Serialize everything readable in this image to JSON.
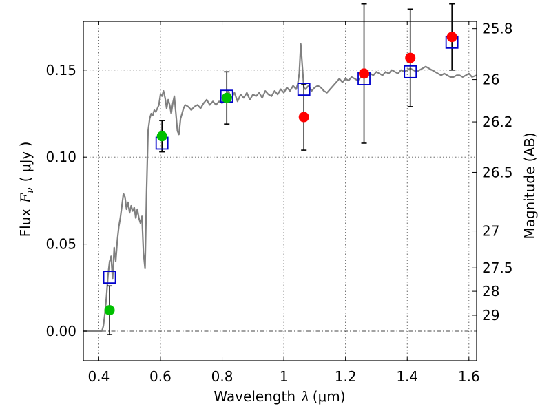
{
  "chart_data": {
    "type": "scatter",
    "xlabel": "Wavelength",
    "xlabel_symbol": "λ",
    "xlabel_unit": "(μm)",
    "ylabel": "Flux",
    "ylabel_symbol": "F",
    "ylabel_sub": "ν",
    "ylabel_unit": "( μJy )",
    "ylabel_right": "Magnitude (AB)",
    "xlim": [
      0.35,
      1.625
    ],
    "ylim": [
      -0.017,
      0.178
    ],
    "grid": true,
    "x_ticks": [
      {
        "value": 0.4,
        "label": "0.4"
      },
      {
        "value": 0.6,
        "label": "0.6"
      },
      {
        "value": 0.8,
        "label": "0.8"
      },
      {
        "value": 1.0,
        "label": "1"
      },
      {
        "value": 1.2,
        "label": "1.2"
      },
      {
        "value": 1.4,
        "label": "1.4"
      },
      {
        "value": 1.6,
        "label": "1.6"
      }
    ],
    "y_ticks": [
      {
        "value": 0.0,
        "label": "0.00"
      },
      {
        "value": 0.05,
        "label": "0.05"
      },
      {
        "value": 0.1,
        "label": "0.10"
      },
      {
        "value": 0.15,
        "label": "0.15"
      }
    ],
    "magnitude_ticks": [
      {
        "value": 25.8,
        "label": "25.8"
      },
      {
        "value": 26.0,
        "label": "26"
      },
      {
        "value": 26.2,
        "label": "26.2"
      },
      {
        "value": 26.5,
        "label": "26.5"
      },
      {
        "value": 27.0,
        "label": "27"
      },
      {
        "value": 27.5,
        "label": "27.5"
      },
      {
        "value": 28.0,
        "label": "28"
      },
      {
        "value": 29.0,
        "label": "29"
      }
    ],
    "zero_line": 0.0,
    "colors": {
      "spectrum": "#808080",
      "optical": "#00c000",
      "nir": "#ff0000",
      "model": "#0000cc",
      "errorbar": "#000000"
    },
    "spectrum": [
      [
        0.35,
        0.0
      ],
      [
        0.41,
        0.0
      ],
      [
        0.415,
        0.003
      ],
      [
        0.42,
        0.01
      ],
      [
        0.425,
        0.02
      ],
      [
        0.43,
        0.032
      ],
      [
        0.435,
        0.04
      ],
      [
        0.44,
        0.043
      ],
      [
        0.445,
        0.03
      ],
      [
        0.45,
        0.048
      ],
      [
        0.455,
        0.04
      ],
      [
        0.46,
        0.052
      ],
      [
        0.465,
        0.06
      ],
      [
        0.47,
        0.065
      ],
      [
        0.475,
        0.072
      ],
      [
        0.48,
        0.079
      ],
      [
        0.485,
        0.077
      ],
      [
        0.49,
        0.07
      ],
      [
        0.495,
        0.074
      ],
      [
        0.5,
        0.068
      ],
      [
        0.505,
        0.072
      ],
      [
        0.51,
        0.069
      ],
      [
        0.515,
        0.071
      ],
      [
        0.52,
        0.065
      ],
      [
        0.525,
        0.07
      ],
      [
        0.53,
        0.065
      ],
      [
        0.535,
        0.062
      ],
      [
        0.54,
        0.066
      ],
      [
        0.545,
        0.045
      ],
      [
        0.55,
        0.036
      ],
      [
        0.555,
        0.08
      ],
      [
        0.56,
        0.115
      ],
      [
        0.565,
        0.122
      ],
      [
        0.57,
        0.125
      ],
      [
        0.575,
        0.124
      ],
      [
        0.58,
        0.127
      ],
      [
        0.585,
        0.126
      ],
      [
        0.59,
        0.128
      ],
      [
        0.595,
        0.13
      ],
      [
        0.6,
        0.136
      ],
      [
        0.605,
        0.135
      ],
      [
        0.61,
        0.138
      ],
      [
        0.615,
        0.134
      ],
      [
        0.62,
        0.128
      ],
      [
        0.625,
        0.133
      ],
      [
        0.63,
        0.13
      ],
      [
        0.635,
        0.125
      ],
      [
        0.64,
        0.131
      ],
      [
        0.645,
        0.135
      ],
      [
        0.65,
        0.125
      ],
      [
        0.655,
        0.115
      ],
      [
        0.66,
        0.113
      ],
      [
        0.665,
        0.122
      ],
      [
        0.67,
        0.125
      ],
      [
        0.675,
        0.128
      ],
      [
        0.68,
        0.13
      ],
      [
        0.69,
        0.129
      ],
      [
        0.7,
        0.127
      ],
      [
        0.71,
        0.129
      ],
      [
        0.72,
        0.13
      ],
      [
        0.73,
        0.128
      ],
      [
        0.74,
        0.131
      ],
      [
        0.75,
        0.133
      ],
      [
        0.76,
        0.13
      ],
      [
        0.77,
        0.132
      ],
      [
        0.78,
        0.13
      ],
      [
        0.79,
        0.132
      ],
      [
        0.8,
        0.131
      ],
      [
        0.81,
        0.133
      ],
      [
        0.82,
        0.138
      ],
      [
        0.83,
        0.134
      ],
      [
        0.84,
        0.137
      ],
      [
        0.85,
        0.132
      ],
      [
        0.86,
        0.136
      ],
      [
        0.87,
        0.134
      ],
      [
        0.88,
        0.137
      ],
      [
        0.89,
        0.133
      ],
      [
        0.9,
        0.136
      ],
      [
        0.91,
        0.135
      ],
      [
        0.92,
        0.137
      ],
      [
        0.93,
        0.134
      ],
      [
        0.94,
        0.138
      ],
      [
        0.95,
        0.136
      ],
      [
        0.96,
        0.135
      ],
      [
        0.97,
        0.138
      ],
      [
        0.98,
        0.136
      ],
      [
        0.99,
        0.139
      ],
      [
        1.0,
        0.137
      ],
      [
        1.01,
        0.14
      ],
      [
        1.02,
        0.138
      ],
      [
        1.03,
        0.141
      ],
      [
        1.04,
        0.139
      ],
      [
        1.045,
        0.142
      ],
      [
        1.05,
        0.148
      ],
      [
        1.055,
        0.165
      ],
      [
        1.06,
        0.152
      ],
      [
        1.065,
        0.14
      ],
      [
        1.07,
        0.139
      ],
      [
        1.08,
        0.141
      ],
      [
        1.09,
        0.138
      ],
      [
        1.1,
        0.14
      ],
      [
        1.11,
        0.141
      ],
      [
        1.12,
        0.14
      ],
      [
        1.13,
        0.138
      ],
      [
        1.14,
        0.137
      ],
      [
        1.15,
        0.139
      ],
      [
        1.16,
        0.141
      ],
      [
        1.17,
        0.143
      ],
      [
        1.18,
        0.145
      ],
      [
        1.19,
        0.143
      ],
      [
        1.2,
        0.145
      ],
      [
        1.21,
        0.144
      ],
      [
        1.22,
        0.146
      ],
      [
        1.23,
        0.145
      ],
      [
        1.24,
        0.144
      ],
      [
        1.25,
        0.146
      ],
      [
        1.26,
        0.147
      ],
      [
        1.27,
        0.146
      ],
      [
        1.28,
        0.148
      ],
      [
        1.29,
        0.147
      ],
      [
        1.3,
        0.149
      ],
      [
        1.31,
        0.148
      ],
      [
        1.32,
        0.147
      ],
      [
        1.33,
        0.149
      ],
      [
        1.34,
        0.148
      ],
      [
        1.35,
        0.15
      ],
      [
        1.36,
        0.149
      ],
      [
        1.37,
        0.148
      ],
      [
        1.38,
        0.15
      ],
      [
        1.39,
        0.149
      ],
      [
        1.4,
        0.15
      ],
      [
        1.41,
        0.151
      ],
      [
        1.42,
        0.15
      ],
      [
        1.43,
        0.149
      ],
      [
        1.44,
        0.15
      ],
      [
        1.45,
        0.151
      ],
      [
        1.46,
        0.152
      ],
      [
        1.47,
        0.151
      ],
      [
        1.48,
        0.15
      ],
      [
        1.49,
        0.149
      ],
      [
        1.5,
        0.148
      ],
      [
        1.51,
        0.147
      ],
      [
        1.52,
        0.148
      ],
      [
        1.53,
        0.147
      ],
      [
        1.54,
        0.146
      ],
      [
        1.55,
        0.146
      ],
      [
        1.56,
        0.147
      ],
      [
        1.57,
        0.147
      ],
      [
        1.58,
        0.146
      ],
      [
        1.59,
        0.147
      ],
      [
        1.6,
        0.148
      ],
      [
        1.61,
        0.146
      ],
      [
        1.625,
        0.147
      ]
    ],
    "optical_points": [
      {
        "x": 0.435,
        "y": 0.012,
        "err_low": 0.014,
        "err_high": 0.014
      },
      {
        "x": 0.605,
        "y": 0.112,
        "err_low": 0.009,
        "err_high": 0.009
      },
      {
        "x": 0.815,
        "y": 0.134,
        "err_low": 0.015,
        "err_high": 0.015
      }
    ],
    "nir_points": [
      {
        "x": 1.065,
        "y": 0.123,
        "err_low": 0.019,
        "err_high": 0.019
      },
      {
        "x": 1.26,
        "y": 0.148,
        "err_low": 0.04,
        "err_high": 0.04
      },
      {
        "x": 1.41,
        "y": 0.157,
        "err_low": 0.028,
        "err_high": 0.028
      },
      {
        "x": 1.545,
        "y": 0.169,
        "err_low": 0.019,
        "err_high": 0.019
      }
    ],
    "model_points": [
      {
        "x": 0.435,
        "y": 0.031
      },
      {
        "x": 0.605,
        "y": 0.108
      },
      {
        "x": 0.815,
        "y": 0.135
      },
      {
        "x": 1.065,
        "y": 0.139
      },
      {
        "x": 1.26,
        "y": 0.145
      },
      {
        "x": 1.41,
        "y": 0.149
      },
      {
        "x": 1.545,
        "y": 0.166
      }
    ]
  }
}
